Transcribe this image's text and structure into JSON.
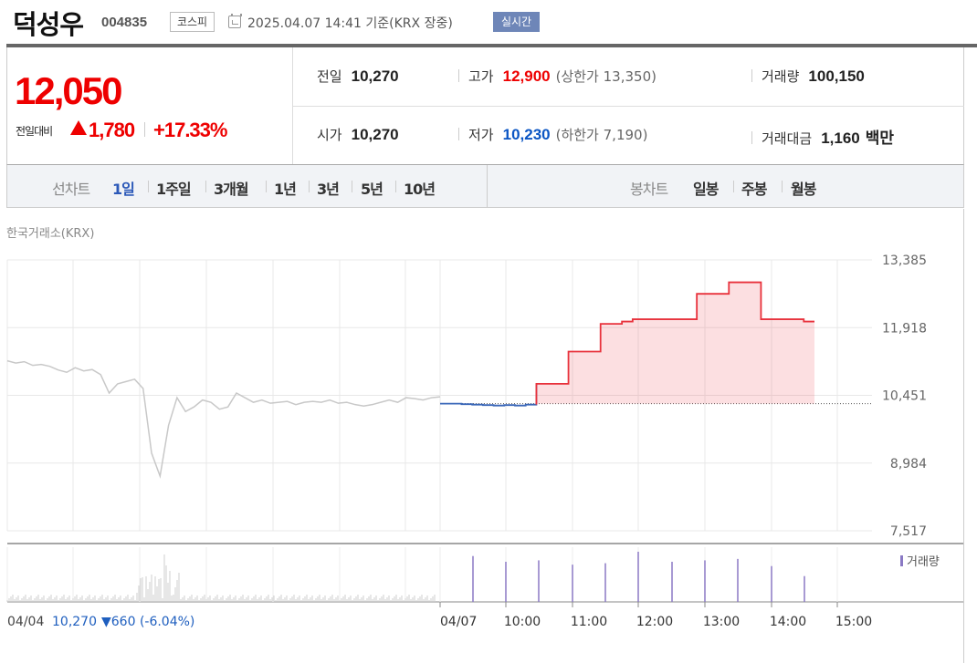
{
  "header": {
    "stock_name": "덕성우",
    "stock_code": "004835",
    "market_badge": "코스피",
    "datetime": "2025.04.07 14:41  기준(KRX 장중)",
    "realtime_badge": "실시간"
  },
  "quote": {
    "price": "12,050",
    "change_label": "전일대비",
    "change": "1,780",
    "change_pct": "+17.33%",
    "prev_close_label": "전일",
    "prev_close": "10,270",
    "open_label": "시가",
    "open": "10,270",
    "high_label": "고가",
    "high": "12,900",
    "upper_limit": "(상한가 13,350)",
    "low_label": "저가",
    "low": "10,230",
    "lower_limit": "(하한가 7,190)",
    "volume_label": "거래량",
    "volume": "100,150",
    "turnover_label": "거래대금",
    "turnover": "1,160",
    "turnover_unit": "백만",
    "up_color": "#e00000",
    "down_color": "#0a55c4"
  },
  "tabs": {
    "line_chart_label": "선차트",
    "periods": [
      "1일",
      "1주일",
      "3개월",
      "1년",
      "3년",
      "5년",
      "10년"
    ],
    "active_period": "1일",
    "candle_chart_label": "봉차트",
    "candle_periods": [
      "일봉",
      "주봉",
      "월봉"
    ]
  },
  "chart": {
    "exchange_label": "한국거래소(KRX)",
    "prev_day_summary_date": "04/04",
    "prev_day_summary_value": "10,270",
    "prev_day_summary_change": "▼660 (-6.04%)",
    "volume_legend": "거래량",
    "y_tick_labels": [
      "13,385",
      "11,918",
      "10,451",
      "8,984",
      "7,517"
    ],
    "x_tick_labels": [
      "04/07",
      "10:00",
      "11:00",
      "12:00",
      "13:00",
      "14:00",
      "15:00"
    ]
  },
  "chart_data": {
    "type": "line",
    "ylim": [
      7517,
      13385
    ],
    "y_ticks": [
      13385,
      11918,
      10451,
      8984,
      7517
    ],
    "baseline": 10270,
    "series": [
      {
        "x": [
          "09:00",
          "09:10",
          "09:20",
          "09:30",
          "09:40",
          "09:50",
          "10:00",
          "10:10",
          "10:20",
          "10:30",
          "10:40",
          "10:50",
          "11:00",
          "11:10",
          "11:20",
          "11:30",
          "11:40",
          "11:50",
          "12:00",
          "12:10",
          "12:20",
          "12:30",
          "12:40",
          "12:50",
          "13:00",
          "13:10",
          "13:20",
          "13:30",
          "13:40",
          "13:50",
          "14:00",
          "14:10",
          "14:20",
          "14:30",
          "14:40"
        ],
        "values": [
          10270,
          10270,
          10260,
          10250,
          10240,
          10230,
          10240,
          10230,
          10250,
          10700,
          10700,
          10700,
          11400,
          11400,
          11400,
          12000,
          12000,
          12050,
          12100,
          12100,
          12100,
          12100,
          12100,
          12100,
          12650,
          12650,
          12650,
          12900,
          12900,
          12900,
          12100,
          12100,
          12100,
          12100,
          12050
        ]
      }
    ],
    "prev_day_series": {
      "x_start": "09:00",
      "x_end": "15:30",
      "values": [
        11200,
        11150,
        11180,
        11100,
        11120,
        11080,
        11000,
        10950,
        11050,
        10980,
        11010,
        10900,
        10500,
        10700,
        10750,
        10800,
        10600,
        9200,
        8700,
        9800,
        10400,
        10100,
        10200,
        10350,
        10300,
        10150,
        10200,
        10500,
        10400,
        10300,
        10350,
        10280,
        10300,
        10320,
        10250,
        10300,
        10320,
        10300,
        10350,
        10280,
        10300,
        10250,
        10220,
        10250,
        10300,
        10350,
        10300,
        10400,
        10380,
        10350,
        10400,
        10420
      ]
    },
    "volume": {
      "today_bars": [
        0,
        3200,
        2800,
        2900,
        2600,
        2700,
        3500,
        2800,
        2900,
        3000,
        2500,
        1800
      ]
    }
  }
}
